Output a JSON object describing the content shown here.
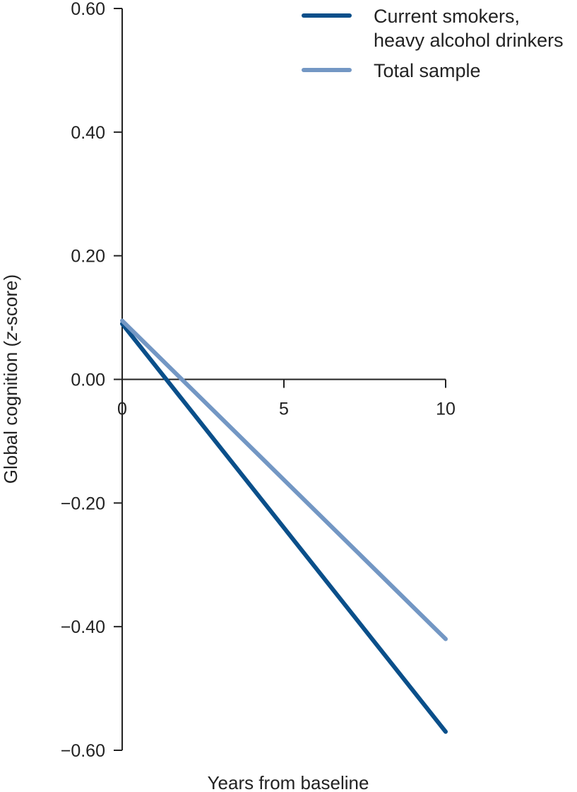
{
  "chart_data": {
    "type": "line",
    "title": "",
    "xlabel": "Years from baseline",
    "ylabel_parts": [
      "Global cognition (",
      "z",
      "-score)"
    ],
    "xlim": [
      0,
      10
    ],
    "ylim": [
      -0.6,
      0.6
    ],
    "x_ticks": [
      0,
      5,
      10
    ],
    "x_tick_labels": [
      "0",
      "5",
      "10"
    ],
    "y_ticks": [
      0.6,
      0.4,
      0.2,
      0.0,
      -0.2,
      -0.4,
      -0.6
    ],
    "y_tick_labels": [
      "0.60",
      "0.40",
      "0.20",
      "0.00",
      "−0.20",
      "−0.40",
      "−0.60"
    ],
    "grid": false,
    "legend_position": "top-right",
    "series": [
      {
        "name_lines": [
          "Current smokers,",
          "heavy alcohol drinkers"
        ],
        "color": "#0a4f8a",
        "x": [
          0,
          10
        ],
        "y": [
          0.09,
          -0.57
        ]
      },
      {
        "name_lines": [
          "Total sample"
        ],
        "color": "#7397c4",
        "x": [
          0,
          10
        ],
        "y": [
          0.095,
          -0.42
        ]
      }
    ]
  }
}
